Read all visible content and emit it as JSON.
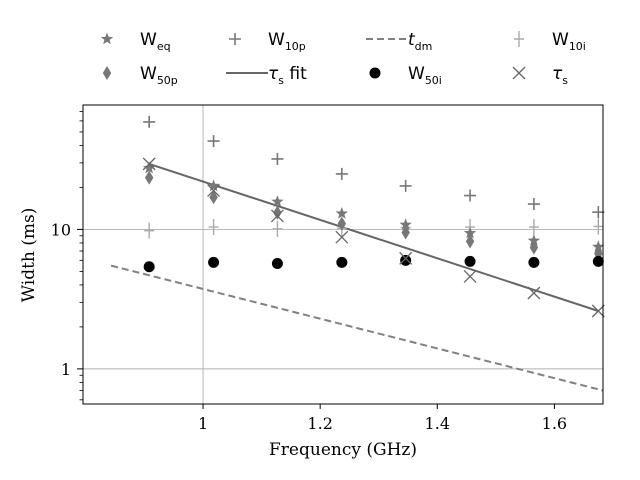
{
  "chart_data": {
    "type": "scatter",
    "xlabel": "Frequency (GHz)",
    "ylabel": "Width (ms)",
    "xlim": [
      0.795,
      1.683
    ],
    "ylim": [
      0.56,
      78
    ],
    "yscale": "log",
    "xticks": [
      {
        "value": 1.0,
        "label": "1"
      },
      {
        "value": 1.2,
        "label": "1.2"
      },
      {
        "value": 1.4,
        "label": "1.4"
      },
      {
        "value": 1.6,
        "label": "1.6"
      }
    ],
    "yticks": [
      {
        "value": 1,
        "label": "1"
      },
      {
        "value": 10,
        "label": "10"
      }
    ],
    "grid": {
      "x": [
        1.0
      ],
      "y": [
        1,
        10
      ]
    },
    "legend_position": "top",
    "x": [
      0.908,
      1.018,
      1.127,
      1.237,
      1.346,
      1.456,
      1.565,
      1.675
    ],
    "series": [
      {
        "name": "W",
        "sub": "eq",
        "marker": "star",
        "color": "#777777",
        "values": [
          27.5,
          20.5,
          15.8,
          13.0,
          10.8,
          9.4,
          8.3,
          7.5
        ]
      },
      {
        "name": "W",
        "sub": "50p",
        "marker": "thin_diamond",
        "color": "#777777",
        "values": [
          23.5,
          17.0,
          13.2,
          11.0,
          9.5,
          8.2,
          7.4,
          6.7
        ]
      },
      {
        "name": "W",
        "sub": "10p",
        "marker": "plus",
        "color": "#777777",
        "values": [
          59,
          43,
          32,
          25,
          20.5,
          17.5,
          15.2,
          13.3
        ]
      },
      {
        "name": "τ",
        "sub": "s",
        "suffix": " fit",
        "marker": "line",
        "color": "#666666",
        "x_range": [
          0.908,
          1.675
        ],
        "values_range": [
          29.5,
          2.6
        ]
      },
      {
        "name": "t",
        "sub": "dm",
        "marker": "dashed",
        "color": "#808080",
        "x_range": [
          0.843,
          1.683
        ],
        "values_range": [
          5.5,
          0.7
        ]
      },
      {
        "name": "W",
        "sub": "50i",
        "marker": "circle",
        "color": "#000000",
        "values": [
          5.4,
          5.8,
          5.7,
          5.8,
          6.0,
          5.9,
          5.8,
          5.9
        ]
      },
      {
        "name": "W",
        "sub": "10i",
        "marker": "vline",
        "color": "#aaaaaa",
        "values": [
          9.8,
          10.4,
          10.1,
          10.2,
          10.3,
          10.4,
          10.4,
          10.5
        ]
      },
      {
        "name": "τ",
        "sub": "s",
        "marker": "x",
        "color": "#666666",
        "values": [
          29.5,
          19.0,
          12.5,
          8.8,
          6.2,
          4.6,
          3.5,
          2.6
        ]
      }
    ]
  }
}
